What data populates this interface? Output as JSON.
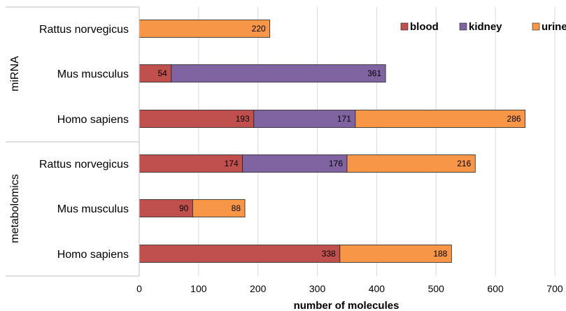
{
  "chart_data": {
    "type": "bar",
    "orientation": "horizontal",
    "stacked": true,
    "xlabel": "number of molecules",
    "xlim": [
      0,
      700
    ],
    "xticks": [
      0,
      100,
      200,
      300,
      400,
      500,
      600,
      700
    ],
    "grid": true,
    "legend_position": "top-right",
    "series": [
      {
        "name": "blood",
        "color": "#c0504d"
      },
      {
        "name": "kidney",
        "color": "#8064a2"
      },
      {
        "name": "urine",
        "color": "#f79646"
      }
    ],
    "groups": [
      {
        "label": "miRNA",
        "rows": [
          {
            "category": "Rattus norvegicus",
            "values": {
              "blood": 0,
              "kidney": 0,
              "urine": 220
            }
          },
          {
            "category": "Mus musculus",
            "values": {
              "blood": 54,
              "kidney": 361,
              "urine": 0
            }
          },
          {
            "category": "Homo sapiens",
            "values": {
              "blood": 193,
              "kidney": 171,
              "urine": 286
            }
          }
        ]
      },
      {
        "label": "metabolomics",
        "rows": [
          {
            "category": "Rattus norvegicus",
            "values": {
              "blood": 174,
              "kidney": 176,
              "urine": 216
            }
          },
          {
            "category": "Mus musculus",
            "values": {
              "blood": 90,
              "kidney": 0,
              "urine": 88
            }
          },
          {
            "category": "Homo sapiens",
            "values": {
              "blood": 338,
              "kidney": 0,
              "urine": 188
            }
          }
        ]
      }
    ]
  }
}
